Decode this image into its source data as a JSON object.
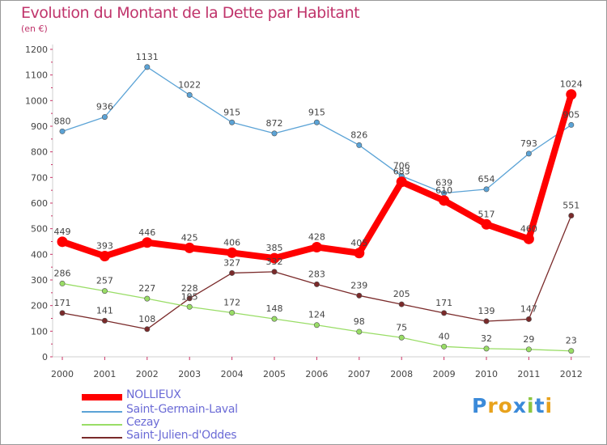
{
  "header": {
    "title": "Evolution du Montant de la Dette par Habitant",
    "subtitle": "(en €)"
  },
  "logo": {
    "text": "Proxiti",
    "letter_colors": [
      "#3b8ad9",
      "#e8a21c",
      "#e8a21c",
      "#3b8ad9",
      "#8dc63f",
      "#3b8ad9",
      "#e8a21c"
    ]
  },
  "chart_data": {
    "type": "line",
    "title": "Evolution du Montant de la Dette par Habitant",
    "subtitle": "(en €)",
    "xlabel": "",
    "ylabel": "",
    "x": [
      "2000",
      "2001",
      "2002",
      "2003",
      "2004",
      "2005",
      "2006",
      "2007",
      "2008",
      "2009",
      "2010",
      "2011",
      "2012"
    ],
    "yticks": [
      0,
      100,
      200,
      300,
      400,
      500,
      600,
      700,
      800,
      900,
      1000,
      1100,
      1200
    ],
    "ylim": [
      0,
      1200
    ],
    "grid": false,
    "legend_position": "bottom-left",
    "series": [
      {
        "name": "NOLLIEUX",
        "color": "#ff0000",
        "values": [
          449,
          393,
          446,
          425,
          406,
          385,
          428,
          405,
          683,
          610,
          517,
          460,
          1024
        ],
        "labels": [
          "449",
          "393",
          "446",
          "425",
          "406",
          "385",
          "428",
          "405",
          "683",
          "610",
          "517",
          "460",
          "1024"
        ]
      },
      {
        "name": "Saint-Germain-Laval",
        "color": "#5ba3d6",
        "values": [
          880,
          936,
          1131,
          1022,
          915,
          872,
          915,
          826,
          706,
          639,
          654,
          793,
          905
        ],
        "labels": [
          "880",
          "936",
          "1131",
          "1022",
          "915",
          "872",
          "915",
          "826",
          "706",
          "639",
          "654",
          "793",
          "905"
        ]
      },
      {
        "name": "Cezay",
        "color": "#99dd66",
        "values": [
          286,
          257,
          227,
          195,
          172,
          148,
          124,
          98,
          75,
          40,
          32,
          29,
          23
        ],
        "labels": [
          "286",
          "257",
          "227",
          "195",
          "172",
          "148",
          "124",
          "98",
          "75",
          "40",
          "32",
          "29",
          "23"
        ]
      },
      {
        "name": "Saint-Julien-d'Oddes",
        "color": "#7a2a2a",
        "values": [
          171,
          141,
          108,
          228,
          327,
          332,
          283,
          239,
          205,
          171,
          139,
          147,
          551
        ],
        "labels": [
          "171",
          "141",
          "108",
          "228",
          "327",
          "332",
          "283",
          "239",
          "205",
          "171",
          "139",
          "147",
          "551"
        ]
      }
    ]
  }
}
